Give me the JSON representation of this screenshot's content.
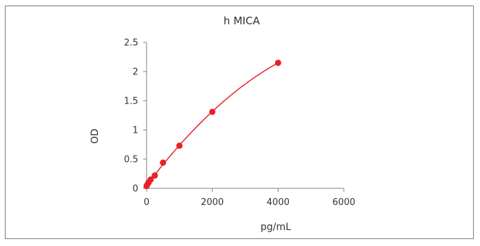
{
  "chart_data": {
    "type": "scatter",
    "title": "h  MICA",
    "xlabel": "pg/mL",
    "ylabel": "OD",
    "xlim": [
      0,
      6000
    ],
    "ylim": [
      0,
      2.5
    ],
    "xticks": [
      0,
      2000,
      4000,
      6000
    ],
    "yticks": [
      0,
      0.5,
      1,
      1.5,
      2,
      2.5
    ],
    "xtick_labels": [
      "0",
      "2000",
      "4000",
      "6000"
    ],
    "ytick_labels": [
      "0",
      "0.5",
      "1",
      "1.5",
      "2",
      "2.5"
    ],
    "grid": false,
    "legend": "none",
    "trendline": "smooth curve",
    "series": [
      {
        "color": "#e8202a",
        "x": [
          0,
          31,
          62.5,
          125,
          250,
          500,
          1000,
          2000,
          4000
        ],
        "y": [
          0.04,
          0.07,
          0.1,
          0.15,
          0.22,
          0.44,
          0.73,
          1.31,
          2.15
        ]
      }
    ]
  }
}
